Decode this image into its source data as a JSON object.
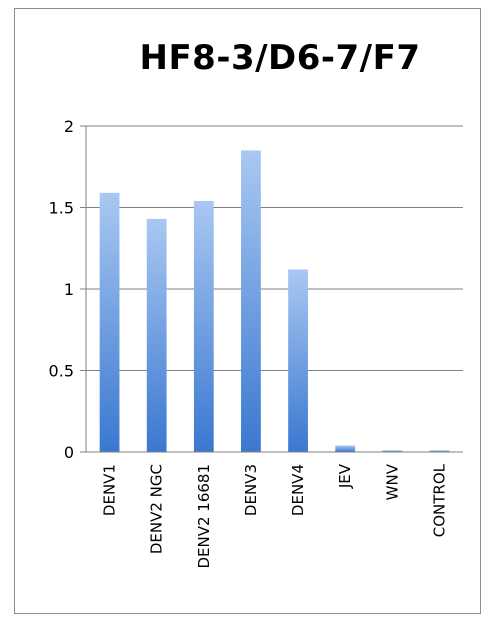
{
  "chart_data": {
    "type": "bar",
    "title": "HF8-3/D6-7/F7",
    "xlabel": "",
    "ylabel": "",
    "categories": [
      "DENV1",
      "DENV2 NGC",
      "DENV2 16681",
      "DENV3",
      "DENV4",
      "JEV",
      "WNV",
      "CONTROL"
    ],
    "values": [
      1.59,
      1.43,
      1.54,
      1.85,
      1.12,
      0.04,
      0.01,
      0.01
    ],
    "ylim": [
      0,
      2
    ],
    "yticks": [
      "0",
      "0.5",
      "1",
      "1.5",
      "2"
    ],
    "ytick_values": [
      0,
      0.5,
      1,
      1.5,
      2
    ],
    "grid": true,
    "legend": "none",
    "colors": {
      "bar_top": "#a9c8f2",
      "bar_bottom": "#3a78d0",
      "gridline": "#7f7f7f",
      "axis": "#7f7f7f",
      "frame": "#8c8c8c"
    }
  }
}
